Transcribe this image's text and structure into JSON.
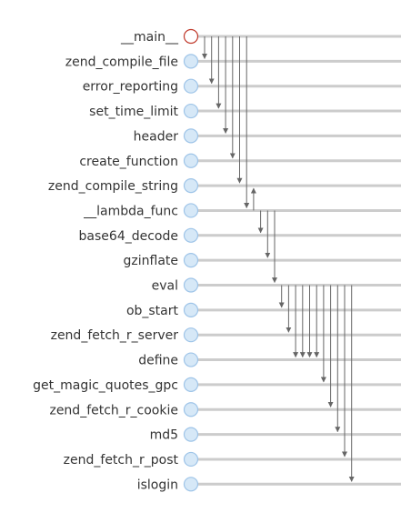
{
  "functions": [
    {
      "name": "__main__",
      "root": true
    },
    {
      "name": "zend_compile_file"
    },
    {
      "name": "error_reporting"
    },
    {
      "name": "set_time_limit"
    },
    {
      "name": "header"
    },
    {
      "name": "create_function"
    },
    {
      "name": "zend_compile_string"
    },
    {
      "name": "__lambda_func"
    },
    {
      "name": "base64_decode"
    },
    {
      "name": "gzinflate"
    },
    {
      "name": "eval"
    },
    {
      "name": "ob_start"
    },
    {
      "name": "zend_fetch_r_server"
    },
    {
      "name": "define"
    },
    {
      "name": "get_magic_quotes_gpc"
    },
    {
      "name": "zend_fetch_r_cookie"
    },
    {
      "name": "md5"
    },
    {
      "name": "zend_fetch_r_post"
    },
    {
      "name": "islogin"
    }
  ],
  "calls": [
    {
      "from": 0,
      "to": 1
    },
    {
      "from": 0,
      "to": 2
    },
    {
      "from": 0,
      "to": 3
    },
    {
      "from": 0,
      "to": 4
    },
    {
      "from": 0,
      "to": 5
    },
    {
      "from": 0,
      "to": 6
    },
    {
      "from": 0,
      "to": 7
    },
    {
      "from": 7,
      "to": 6
    },
    {
      "from": 7,
      "to": 8
    },
    {
      "from": 7,
      "to": 9
    },
    {
      "from": 7,
      "to": 10
    },
    {
      "from": 10,
      "to": 11
    },
    {
      "from": 10,
      "to": 12
    },
    {
      "from": 10,
      "to": 13
    },
    {
      "from": 10,
      "to": 13
    },
    {
      "from": 10,
      "to": 13
    },
    {
      "from": 10,
      "to": 13
    },
    {
      "from": 10,
      "to": 14
    },
    {
      "from": 10,
      "to": 15
    },
    {
      "from": 10,
      "to": 16
    },
    {
      "from": 10,
      "to": 17
    },
    {
      "from": 10,
      "to": 18
    }
  ],
  "colors": {
    "root_stroke": "#c0392b",
    "root_fill": "#ffffff",
    "node_stroke": "#9ec4e8",
    "node_fill": "#d6e8f7",
    "timeline": "#cccccc",
    "arrow": "#666666",
    "text": "#333333"
  }
}
